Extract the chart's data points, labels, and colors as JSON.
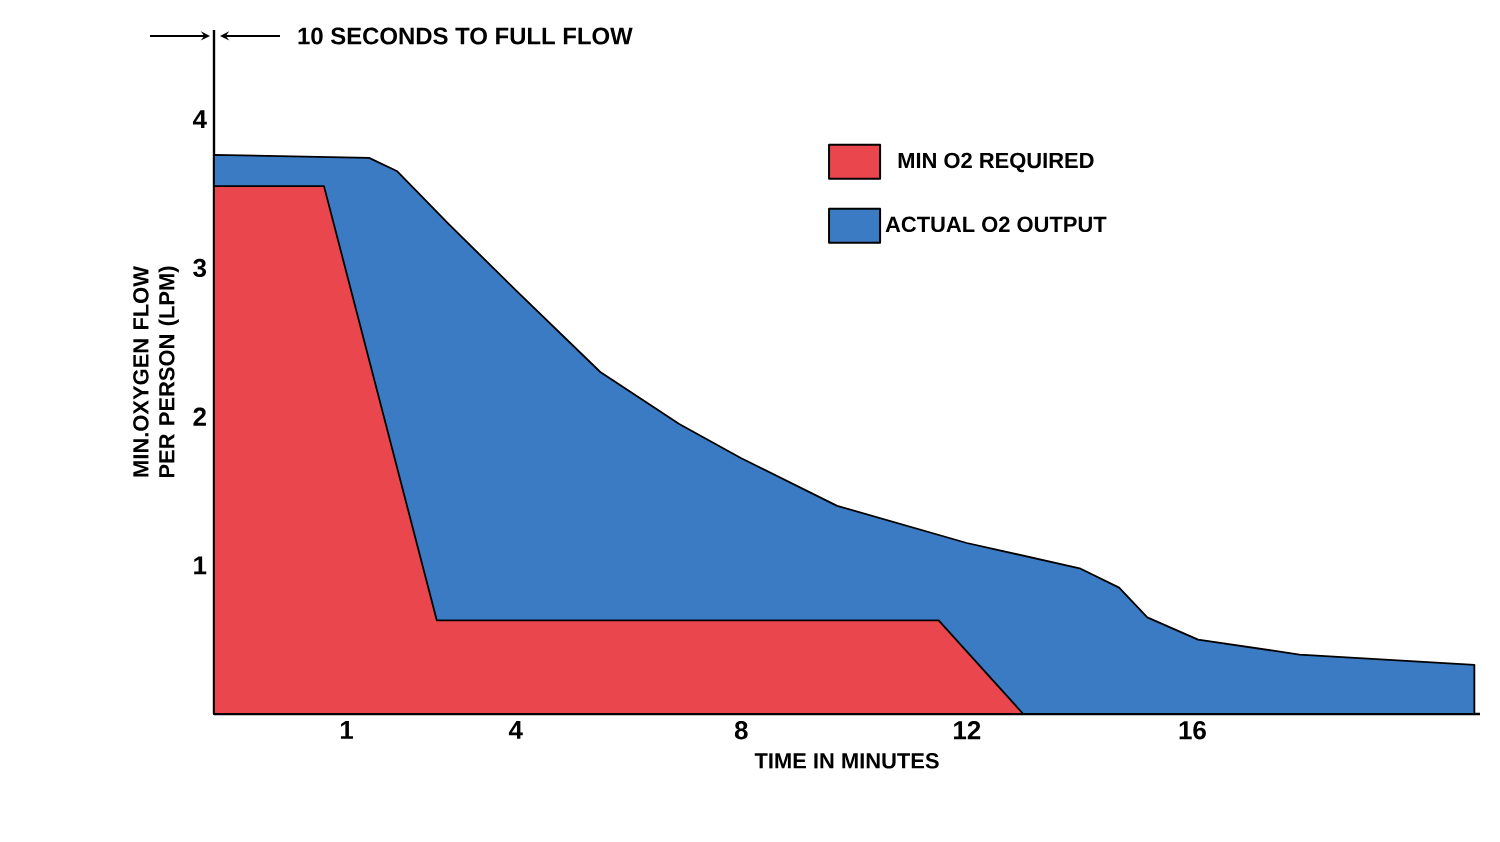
{
  "chart_data": {
    "type": "area",
    "xlabel": "TIME IN MINUTES",
    "ylabel": "MIN.OXYGEN FLOW PER PERSON (LPM)",
    "xlim": [
      -1.35,
      21.1
    ],
    "xticks": [
      1,
      4,
      8,
      12,
      16
    ],
    "ylim": [
      0,
      4.6
    ],
    "yticks": [
      1,
      2,
      3,
      4
    ],
    "legend": "top right",
    "annotations": [
      "10 SECONDS TO FULL FLOW"
    ],
    "series": [
      {
        "name": "ACTUAL O2 OUTPUT",
        "color": "#3a7bc4",
        "x": [
          -1.35,
          1.4,
          1.9,
          2.8,
          4,
          5.5,
          6.9,
          8,
          9.7,
          12,
          14,
          14.7,
          15.2,
          16.1,
          17.9,
          21.0,
          21.0
        ],
        "values": [
          3.76,
          3.74,
          3.65,
          3.3,
          2.85,
          2.3,
          1.95,
          1.72,
          1.4,
          1.15,
          0.98,
          0.85,
          0.65,
          0.5,
          0.4,
          0.33,
          0
        ]
      },
      {
        "name": "MIN O2 REQUIRED",
        "color": "#e9464e",
        "x": [
          -1.35,
          0.6,
          2.6,
          11.5,
          13.0
        ],
        "values": [
          3.55,
          3.55,
          0.63,
          0.63,
          0
        ]
      }
    ]
  }
}
